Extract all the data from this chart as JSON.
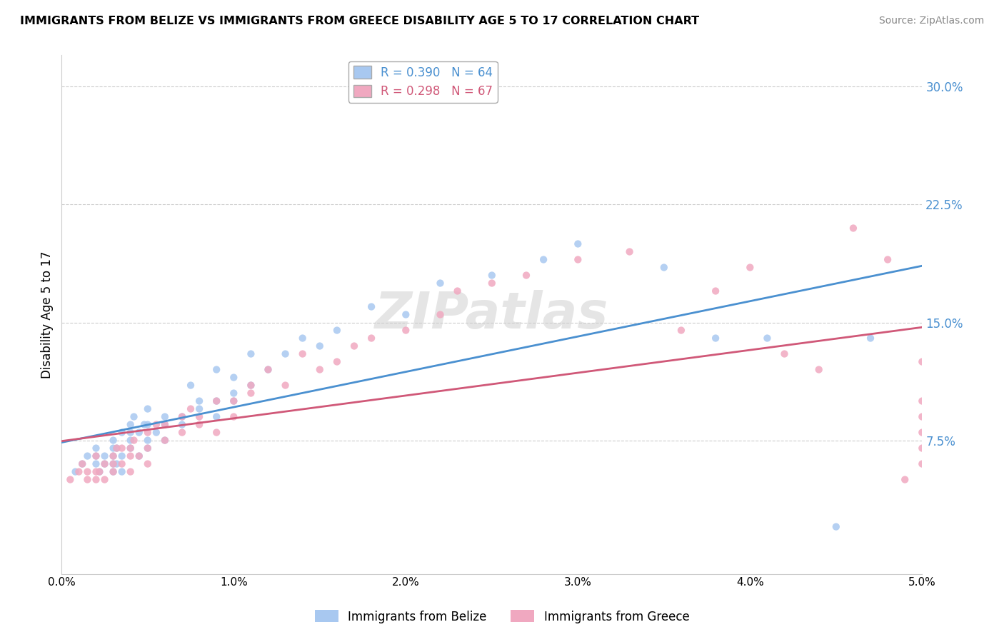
{
  "title": "IMMIGRANTS FROM BELIZE VS IMMIGRANTS FROM GREECE DISABILITY AGE 5 TO 17 CORRELATION CHART",
  "source": "Source: ZipAtlas.com",
  "ylabel": "Disability Age 5 to 17",
  "yticks": [
    0.0,
    0.075,
    0.15,
    0.225,
    0.3
  ],
  "ytick_labels": [
    "",
    "7.5%",
    "15.0%",
    "22.5%",
    "30.0%"
  ],
  "xlim": [
    0.0,
    0.05
  ],
  "ylim": [
    -0.01,
    0.32
  ],
  "belize_R": 0.39,
  "belize_N": 64,
  "greece_R": 0.298,
  "greece_N": 67,
  "belize_color": "#a8c8f0",
  "greece_color": "#f0a8c0",
  "belize_line_color": "#4a90d0",
  "greece_line_color": "#d05878",
  "legend_label_belize": "Immigrants from Belize",
  "legend_label_greece": "Immigrants from Greece",
  "watermark": "ZIPatlas",
  "belize_x": [
    0.0008,
    0.0012,
    0.0015,
    0.002,
    0.002,
    0.002,
    0.0022,
    0.0025,
    0.0025,
    0.003,
    0.003,
    0.003,
    0.003,
    0.003,
    0.0032,
    0.0032,
    0.0035,
    0.0035,
    0.0035,
    0.004,
    0.004,
    0.004,
    0.004,
    0.0042,
    0.0045,
    0.0045,
    0.0048,
    0.005,
    0.005,
    0.005,
    0.005,
    0.0055,
    0.006,
    0.006,
    0.006,
    0.007,
    0.007,
    0.0075,
    0.008,
    0.008,
    0.009,
    0.009,
    0.009,
    0.01,
    0.01,
    0.01,
    0.011,
    0.011,
    0.012,
    0.013,
    0.014,
    0.015,
    0.016,
    0.018,
    0.02,
    0.022,
    0.025,
    0.028,
    0.03,
    0.035,
    0.038,
    0.041,
    0.045,
    0.047
  ],
  "belize_y": [
    0.055,
    0.06,
    0.065,
    0.06,
    0.065,
    0.07,
    0.055,
    0.06,
    0.065,
    0.055,
    0.06,
    0.065,
    0.07,
    0.075,
    0.06,
    0.07,
    0.055,
    0.065,
    0.08,
    0.07,
    0.075,
    0.08,
    0.085,
    0.09,
    0.065,
    0.08,
    0.085,
    0.07,
    0.075,
    0.085,
    0.095,
    0.08,
    0.075,
    0.085,
    0.09,
    0.085,
    0.09,
    0.11,
    0.095,
    0.1,
    0.09,
    0.1,
    0.12,
    0.1,
    0.105,
    0.115,
    0.11,
    0.13,
    0.12,
    0.13,
    0.14,
    0.135,
    0.145,
    0.16,
    0.155,
    0.175,
    0.18,
    0.19,
    0.2,
    0.185,
    0.14,
    0.14,
    0.02,
    0.14
  ],
  "greece_x": [
    0.0005,
    0.001,
    0.0012,
    0.0015,
    0.0015,
    0.002,
    0.002,
    0.002,
    0.0022,
    0.0025,
    0.0025,
    0.003,
    0.003,
    0.003,
    0.0032,
    0.0035,
    0.0035,
    0.004,
    0.004,
    0.004,
    0.0042,
    0.0045,
    0.005,
    0.005,
    0.005,
    0.0055,
    0.006,
    0.006,
    0.007,
    0.007,
    0.0075,
    0.008,
    0.008,
    0.009,
    0.009,
    0.01,
    0.01,
    0.011,
    0.011,
    0.012,
    0.013,
    0.014,
    0.015,
    0.016,
    0.017,
    0.018,
    0.02,
    0.022,
    0.023,
    0.025,
    0.027,
    0.03,
    0.033,
    0.036,
    0.038,
    0.04,
    0.042,
    0.044,
    0.046,
    0.048,
    0.049,
    0.05,
    0.05,
    0.05,
    0.05,
    0.05,
    0.05
  ],
  "greece_y": [
    0.05,
    0.055,
    0.06,
    0.05,
    0.055,
    0.05,
    0.055,
    0.065,
    0.055,
    0.05,
    0.06,
    0.055,
    0.06,
    0.065,
    0.07,
    0.06,
    0.07,
    0.055,
    0.065,
    0.07,
    0.075,
    0.065,
    0.06,
    0.07,
    0.08,
    0.085,
    0.075,
    0.085,
    0.08,
    0.09,
    0.095,
    0.085,
    0.09,
    0.1,
    0.08,
    0.09,
    0.1,
    0.105,
    0.11,
    0.12,
    0.11,
    0.13,
    0.12,
    0.125,
    0.135,
    0.14,
    0.145,
    0.155,
    0.17,
    0.175,
    0.18,
    0.19,
    0.195,
    0.145,
    0.17,
    0.185,
    0.13,
    0.12,
    0.21,
    0.19,
    0.05,
    0.06,
    0.07,
    0.08,
    0.09,
    0.1,
    0.125
  ]
}
